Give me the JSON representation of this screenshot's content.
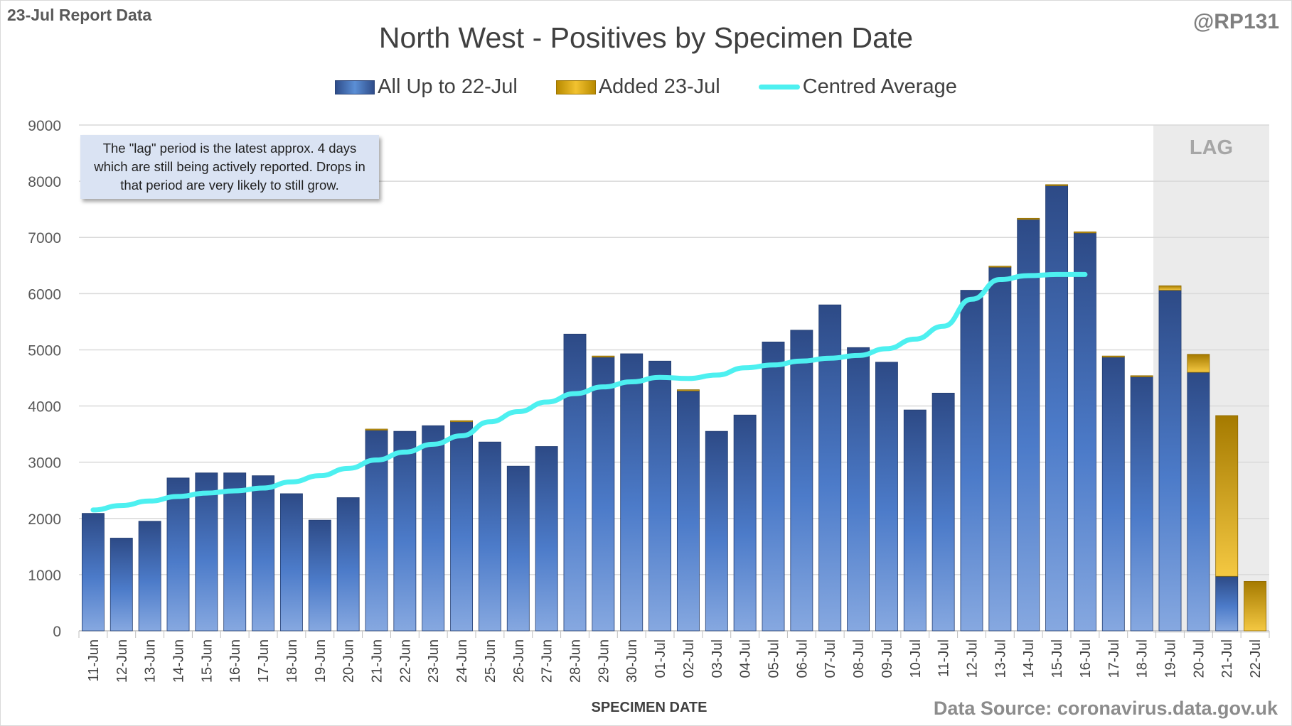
{
  "header": {
    "report_label": "23-Jul Report Data",
    "handle": "@RP131",
    "source": "Data Source: coronavirus.data.gov.uk"
  },
  "annotations": {
    "note": "The \"lag\" period is the latest approx. 4 days which are still being actively reported.  Drops in that period are very likely to still grow.",
    "lag_label": "LAG"
  },
  "colors": {
    "bar_base": "#2f4d8a",
    "bar_added": "#e8b417",
    "average_line": "#4df0f0",
    "lag_band": "#ebebeb"
  },
  "chart_data": {
    "type": "bar",
    "title": "North West - Positives by Specimen Date",
    "xlabel": "SPECIMEN DATE",
    "ylabel": "",
    "ylim": [
      0,
      9000
    ],
    "yticks": [
      0,
      1000,
      2000,
      3000,
      4000,
      5000,
      6000,
      7000,
      8000,
      9000
    ],
    "grid": true,
    "legend_position": "top",
    "stacked": true,
    "categories": [
      "11-Jun",
      "12-Jun",
      "13-Jun",
      "14-Jun",
      "15-Jun",
      "16-Jun",
      "17-Jun",
      "18-Jun",
      "19-Jun",
      "20-Jun",
      "21-Jun",
      "22-Jun",
      "23-Jun",
      "24-Jun",
      "25-Jun",
      "26-Jun",
      "27-Jun",
      "28-Jun",
      "29-Jun",
      "30-Jun",
      "01-Jul",
      "02-Jul",
      "03-Jul",
      "04-Jul",
      "05-Jul",
      "06-Jul",
      "07-Jul",
      "08-Jul",
      "09-Jul",
      "10-Jul",
      "11-Jul",
      "12-Jul",
      "13-Jul",
      "14-Jul",
      "15-Jul",
      "16-Jul",
      "17-Jul",
      "18-Jul",
      "19-Jul",
      "20-Jul",
      "21-Jul",
      "22-Jul"
    ],
    "series": [
      {
        "name": "All Up to 22-Jul",
        "type": "bar",
        "values": [
          2090,
          1650,
          1950,
          2720,
          2810,
          2810,
          2760,
          2440,
          1970,
          2370,
          3570,
          3550,
          3650,
          3720,
          3360,
          2930,
          3280,
          5280,
          4870,
          4930,
          4800,
          4270,
          3550,
          3840,
          5140,
          5350,
          5800,
          5040,
          4780,
          3930,
          4230,
          6060,
          6470,
          7320,
          7920,
          7080,
          4870,
          4520,
          6060,
          4600,
          970,
          0
        ]
      },
      {
        "name": "Added 23-Jul",
        "type": "bar",
        "values": [
          0,
          0,
          0,
          0,
          0,
          0,
          0,
          0,
          0,
          0,
          20,
          0,
          0,
          20,
          0,
          0,
          0,
          0,
          20,
          0,
          0,
          20,
          0,
          0,
          0,
          0,
          0,
          0,
          0,
          0,
          0,
          0,
          20,
          20,
          20,
          20,
          20,
          20,
          80,
          320,
          2860,
          880
        ]
      },
      {
        "name": "Centred Average",
        "type": "line",
        "values": [
          2150,
          2230,
          2310,
          2390,
          2450,
          2490,
          2540,
          2650,
          2760,
          2890,
          3040,
          3180,
          3320,
          3470,
          3720,
          3900,
          4070,
          4220,
          4340,
          4430,
          4510,
          4490,
          4550,
          4680,
          4730,
          4800,
          4850,
          4900,
          5020,
          5190,
          5420,
          5900,
          6250,
          6320,
          6340,
          6340,
          null,
          null,
          null,
          null,
          null,
          null
        ]
      }
    ],
    "lag_categories": [
      "19-Jul",
      "20-Jul",
      "21-Jul",
      "22-Jul"
    ]
  }
}
